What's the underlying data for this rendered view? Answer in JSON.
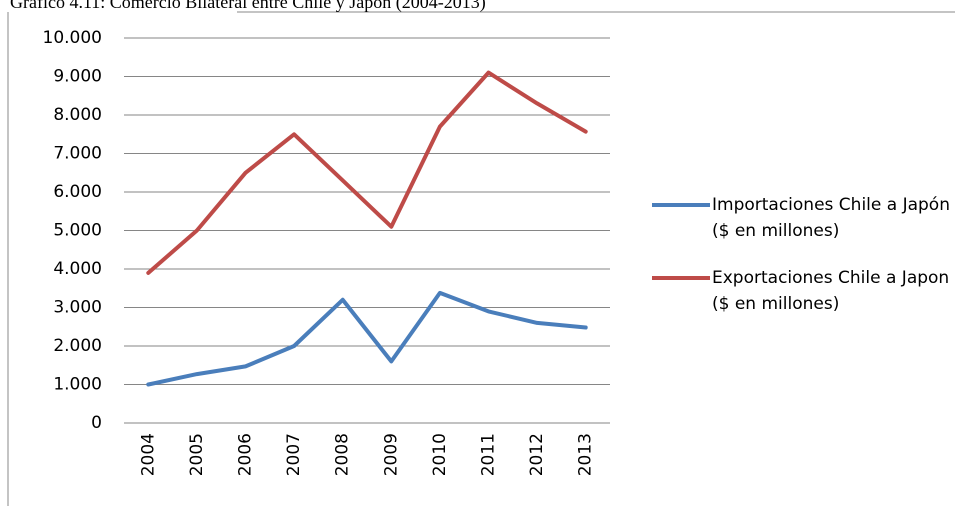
{
  "chart_data": {
    "type": "line",
    "title": "Gráfico 4.11: Comercio Bilateral entre Chile y Japón (2004-2013)",
    "categories": [
      "2004",
      "2005",
      "2006",
      "2007",
      "2008",
      "2009",
      "2010",
      "2011",
      "2012",
      "2013"
    ],
    "series": [
      {
        "name": "Importaciones Chile a Japón ($ en millones)",
        "color": "#4a7ebb",
        "values": [
          1000,
          1270,
          1470,
          2000,
          3200,
          1600,
          3380,
          2900,
          2600,
          2480
        ]
      },
      {
        "name": "Exportaciones Chile a Japon ($ en millones)",
        "color": "#be4b48",
        "values": [
          3900,
          5000,
          6500,
          7500,
          6300,
          5100,
          7700,
          9100,
          8300,
          7570
        ]
      }
    ],
    "ylim": [
      0,
      10000
    ],
    "yticks": [
      0,
      {
        "value": 1000,
        "label": "1.000"
      },
      {
        "value": 2000,
        "label": "2.000"
      },
      {
        "value": 3000,
        "label": "3.000"
      },
      {
        "value": 4000,
        "label": "4.000"
      },
      {
        "value": 5000,
        "label": "5.000"
      },
      {
        "value": 6000,
        "label": "6.000"
      },
      {
        "value": 7000,
        "label": "7.000"
      },
      {
        "value": 8000,
        "label": "8.000"
      },
      {
        "value": 9000,
        "label": "9.000"
      },
      {
        "value": 10000,
        "label": "10.000"
      }
    ],
    "grid": true,
    "legend": "right"
  }
}
